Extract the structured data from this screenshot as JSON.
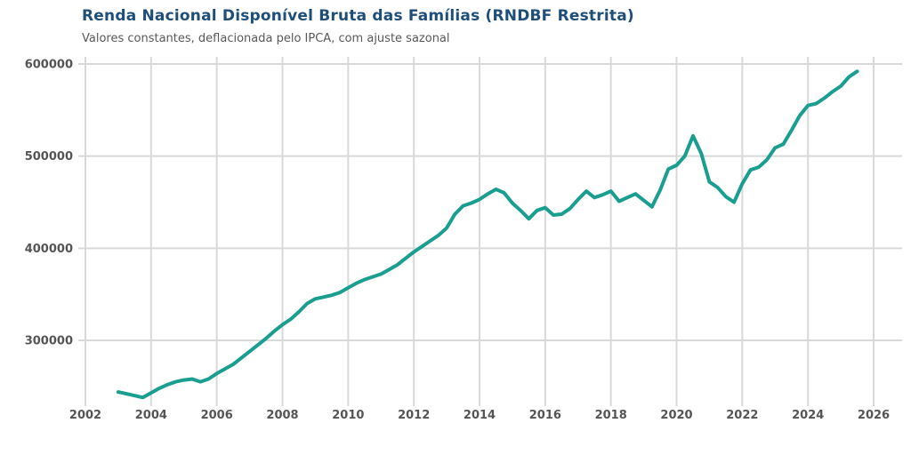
{
  "header": {
    "title": "Renda Nacional Disponível Bruta das Famílias (RNDBF Restrita)",
    "subtitle": "Valores constantes, deflacionada pelo IPCA, com ajuste sazonal"
  },
  "colors": {
    "title": "#1F4E79",
    "subtitle": "#595959",
    "tick_labels": "#555555",
    "gridline": "#D9D9D9",
    "series_line": "#1A9E8F",
    "background": "#FFFFFF"
  },
  "chart_data": {
    "type": "line",
    "title": "Renda Nacional Disponível Bruta das Famílias (RNDBF Restrita)",
    "subtitle": "Valores constantes, deflacionada pelo IPCA, com ajuste sazonal",
    "xlabel": "",
    "ylabel": "",
    "grid": true,
    "legend_position": "none",
    "x_ticks": [
      2002,
      2004,
      2006,
      2008,
      2010,
      2012,
      2014,
      2016,
      2018,
      2020,
      2022,
      2024,
      2026
    ],
    "y_ticks": [
      300000,
      400000,
      500000,
      600000
    ],
    "xlim": [
      2001.8,
      2026.9
    ],
    "ylim": [
      213000,
      608000
    ],
    "series": [
      {
        "name": "RNDBF Restrita",
        "color": "#1A9E8F",
        "x": [
          2003,
          2003.25,
          2003.5,
          2003.75,
          2004,
          2004.25,
          2004.5,
          2004.75,
          2005,
          2005.25,
          2005.5,
          2005.75,
          2006,
          2006.25,
          2006.5,
          2006.75,
          2007,
          2007.25,
          2007.5,
          2007.75,
          2008,
          2008.25,
          2008.5,
          2008.75,
          2009,
          2009.25,
          2009.5,
          2009.75,
          2010,
          2010.25,
          2010.5,
          2010.75,
          2011,
          2011.25,
          2011.5,
          2011.75,
          2012,
          2012.25,
          2012.5,
          2012.75,
          2013,
          2013.25,
          2013.5,
          2013.75,
          2014,
          2014.25,
          2014.5,
          2014.75,
          2015,
          2015.25,
          2015.5,
          2015.75,
          2016,
          2016.25,
          2016.5,
          2016.75,
          2017,
          2017.25,
          2017.5,
          2017.75,
          2018,
          2018.25,
          2018.5,
          2018.75,
          2019,
          2019.25,
          2019.5,
          2019.75,
          2020,
          2020.25,
          2020.5,
          2020.75,
          2021,
          2021.25,
          2021.5,
          2021.75,
          2022,
          2022.25,
          2022.5,
          2022.75,
          2023,
          2023.25,
          2023.5,
          2023.75,
          2024,
          2024.25,
          2024.5,
          2024.75,
          2025,
          2025.25,
          2025.5
        ],
        "values": [
          244000,
          242000,
          240000,
          238000,
          243000,
          248000,
          252000,
          255000,
          257000,
          258000,
          255000,
          258000,
          264000,
          269000,
          274000,
          281000,
          288000,
          295000,
          302000,
          310000,
          317000,
          323000,
          331000,
          340000,
          345000,
          347000,
          349000,
          352000,
          357000,
          362000,
          366000,
          369000,
          372000,
          377000,
          382000,
          389000,
          396000,
          402000,
          408000,
          414000,
          422000,
          437000,
          446000,
          449000,
          453000,
          459000,
          464000,
          460000,
          449000,
          441000,
          432000,
          441000,
          444000,
          436000,
          437000,
          443000,
          453000,
          462000,
          455000,
          458000,
          462000,
          451000,
          455000,
          459000,
          452000,
          445000,
          463000,
          486000,
          490000,
          500000,
          522000,
          503000,
          472000,
          466000,
          456000,
          450000,
          470000,
          485000,
          488000,
          496000,
          509000,
          513000,
          528000,
          544000,
          555000,
          557000,
          563000,
          570000,
          576000,
          586000,
          592000
        ]
      }
    ]
  }
}
